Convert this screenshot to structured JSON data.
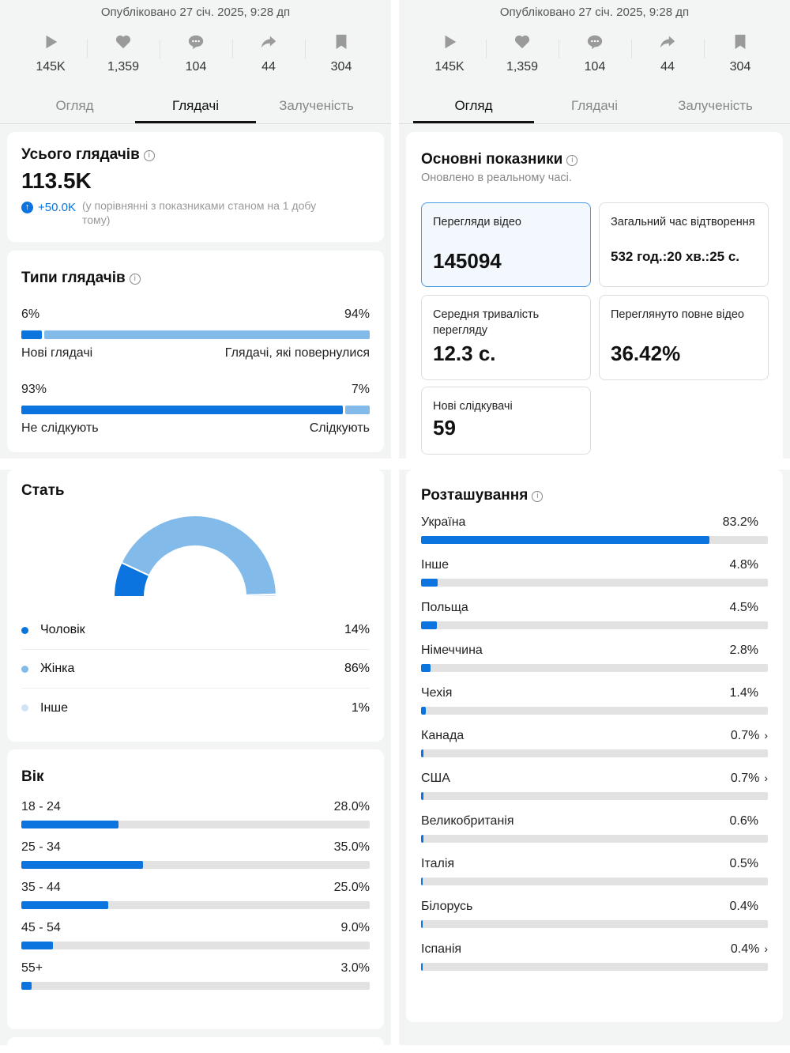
{
  "published": "Опубліковано 27 січ. 2025, 9:28 дп",
  "stats": [
    {
      "icon": "play",
      "value": "145K"
    },
    {
      "icon": "heart",
      "value": "1,359"
    },
    {
      "icon": "comment",
      "value": "104"
    },
    {
      "icon": "share",
      "value": "44"
    },
    {
      "icon": "bookmark",
      "value": "304"
    }
  ],
  "tabs": [
    "Огляд",
    "Глядачі",
    "Залученість"
  ],
  "left": {
    "total": {
      "title": "Усього глядачів",
      "value": "113.5K",
      "delta": "+50.0K",
      "note": "(у порівнянні з показниками станом на 1 добу тому)"
    },
    "types": {
      "title": "Типи глядачів",
      "rows": [
        {
          "a_pct": "6%",
          "b_pct": "94%",
          "a": 6,
          "b": 94,
          "a_label": "Нові глядачі",
          "b_label": "Глядачі, які повернулися"
        },
        {
          "a_pct": "93%",
          "b_pct": "7%",
          "a": 93,
          "b": 7,
          "a_label": "Не слідкують",
          "b_label": "Слідкують"
        }
      ]
    },
    "gender": {
      "title": "Стать",
      "items": [
        {
          "label": "Чоловік",
          "value": "14%",
          "num": 14,
          "color": "#0b74de"
        },
        {
          "label": "Жінка",
          "value": "86%",
          "num": 86,
          "color": "#82bbea"
        },
        {
          "label": "Інше",
          "value": "1%",
          "num": 1,
          "color": "#cfe4f7"
        }
      ]
    },
    "age": {
      "title": "Вік",
      "items": [
        {
          "label": "18 - 24",
          "value": "28.0%",
          "num": 28
        },
        {
          "label": "25 - 34",
          "value": "35.0%",
          "num": 35
        },
        {
          "label": "35 - 44",
          "value": "25.0%",
          "num": 25
        },
        {
          "label": "45 - 54",
          "value": "9.0%",
          "num": 9
        },
        {
          "label": "55+",
          "value": "3.0%",
          "num": 3
        }
      ]
    }
  },
  "right": {
    "key": {
      "title": "Основні показники",
      "subtitle": "Оновлено в реальному часі.",
      "metrics": [
        {
          "label": "Перегляди відео",
          "value": "145094"
        },
        {
          "label": "Загальний час відтворення",
          "value": "532 год.:20 хв.:25 с."
        },
        {
          "label": "Середня тривалість перегляду",
          "value": "12.3 с."
        },
        {
          "label": "Переглянуто повне відео",
          "value": "36.42%"
        },
        {
          "label": "Нові слідкувачі",
          "value": "59"
        }
      ]
    },
    "location": {
      "title": "Розташування",
      "items": [
        {
          "label": "Україна",
          "value": "83.2%",
          "num": 83.2
        },
        {
          "label": "Інше",
          "value": "4.8%",
          "num": 4.8
        },
        {
          "label": "Польща",
          "value": "4.5%",
          "num": 4.5
        },
        {
          "label": "Німеччина",
          "value": "2.8%",
          "num": 2.8
        },
        {
          "label": "Чехія",
          "value": "1.4%",
          "num": 1.4
        },
        {
          "label": "Канада",
          "value": "0.7%",
          "num": 0.7,
          "more": true
        },
        {
          "label": "США",
          "value": "0.7%",
          "num": 0.7,
          "more": true
        },
        {
          "label": "Великобританія",
          "value": "0.6%",
          "num": 0.6
        },
        {
          "label": "Італія",
          "value": "0.5%",
          "num": 0.5
        },
        {
          "label": "Білорусь",
          "value": "0.4%",
          "num": 0.4
        },
        {
          "label": "Іспанія",
          "value": "0.4%",
          "num": 0.4,
          "more": true
        }
      ]
    }
  },
  "colors": {
    "accent": "#0b74de",
    "light": "#82bbea"
  }
}
